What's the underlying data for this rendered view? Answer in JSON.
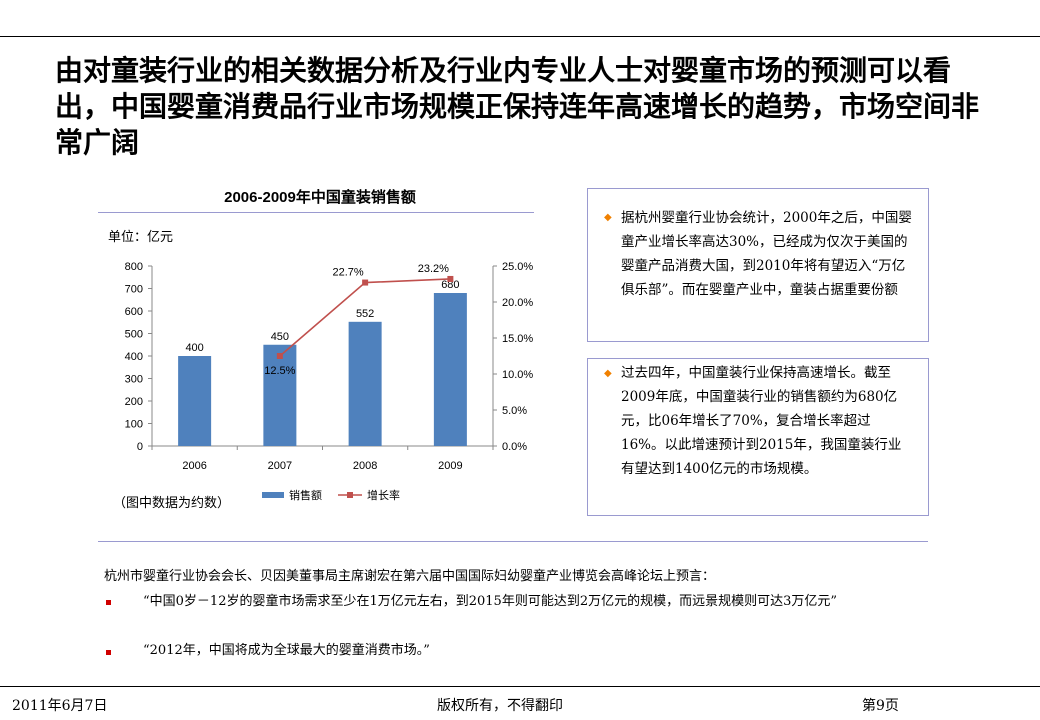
{
  "headline": "由对童装行业的相关数据分析及行业内专业人士对婴童市场的预测可以看出，中国婴童消费品行业市场规模正保持连年高速增长的趋势，市场空间非常广阔",
  "chart": {
    "unit": "单位：亿元",
    "note": "（图中数据为约数）"
  },
  "chart_data": {
    "type": "bar",
    "title": "2006-2009年中国童装销售额",
    "categories": [
      "2006",
      "2007",
      "2008",
      "2009"
    ],
    "series": [
      {
        "name": "销售额",
        "type": "bar",
        "axis": "left",
        "color": "#4f81bd",
        "values": [
          400,
          450,
          552,
          680
        ],
        "labels": [
          "400",
          "450",
          "552",
          "680"
        ]
      },
      {
        "name": "增长率",
        "type": "line",
        "axis": "right",
        "color": "#c0504d",
        "values": [
          null,
          12.5,
          22.7,
          23.2
        ],
        "labels": [
          "",
          "12.5%",
          "22.7%",
          "23.2%"
        ]
      }
    ],
    "y_left": {
      "min": 0,
      "max": 800,
      "ticks": [
        0,
        100,
        200,
        300,
        400,
        500,
        600,
        700,
        800
      ],
      "tick_labels": [
        "0",
        "100",
        "200",
        "300",
        "400",
        "500",
        "600",
        "700",
        "800"
      ]
    },
    "y_right": {
      "min": 0,
      "max": 25,
      "ticks": [
        0,
        5,
        10,
        15,
        20,
        25
      ],
      "tick_labels": [
        "0.0%",
        "5.0%",
        "10.0%",
        "15.0%",
        "20.0%",
        "25.0%"
      ]
    },
    "grid": false,
    "legend": "bottom"
  },
  "box1": {
    "text": "据杭州婴童行业协会统计，2000年之后，中国婴童产业增长率高达30%，已经成为仅次于美国的婴童产品消费大国，到2010年将有望迈入“万亿俱乐部”。而在婴童产业中，童装占据重要份额"
  },
  "box2": {
    "text": "过去四年，中国童装行业保持高速增长。截至2009年底，中国童装行业的销售额约为680亿元，比06年增长了70%，复合增长率超过16%。以此增速预计到2015年，我国童装行业有望达到1400亿元的市场规模。"
  },
  "quotes": {
    "intro": "杭州市婴童行业协会会长、贝因美董事局主席谢宏在第六届中国国际妇幼婴童产业博览会高峰论坛上预言：",
    "items": [
      "“中国0岁－12岁的婴童市场需求至少在1万亿元左右，到2015年则可能达到2万亿元的规模，而远景规模则可达3万亿元”",
      "“2012年，中国将成为全球最大的婴童消费市场。”"
    ]
  },
  "footer": {
    "date": "2011年6月7日",
    "copyright": "版权所有，不得翻印",
    "page": "第9页"
  }
}
